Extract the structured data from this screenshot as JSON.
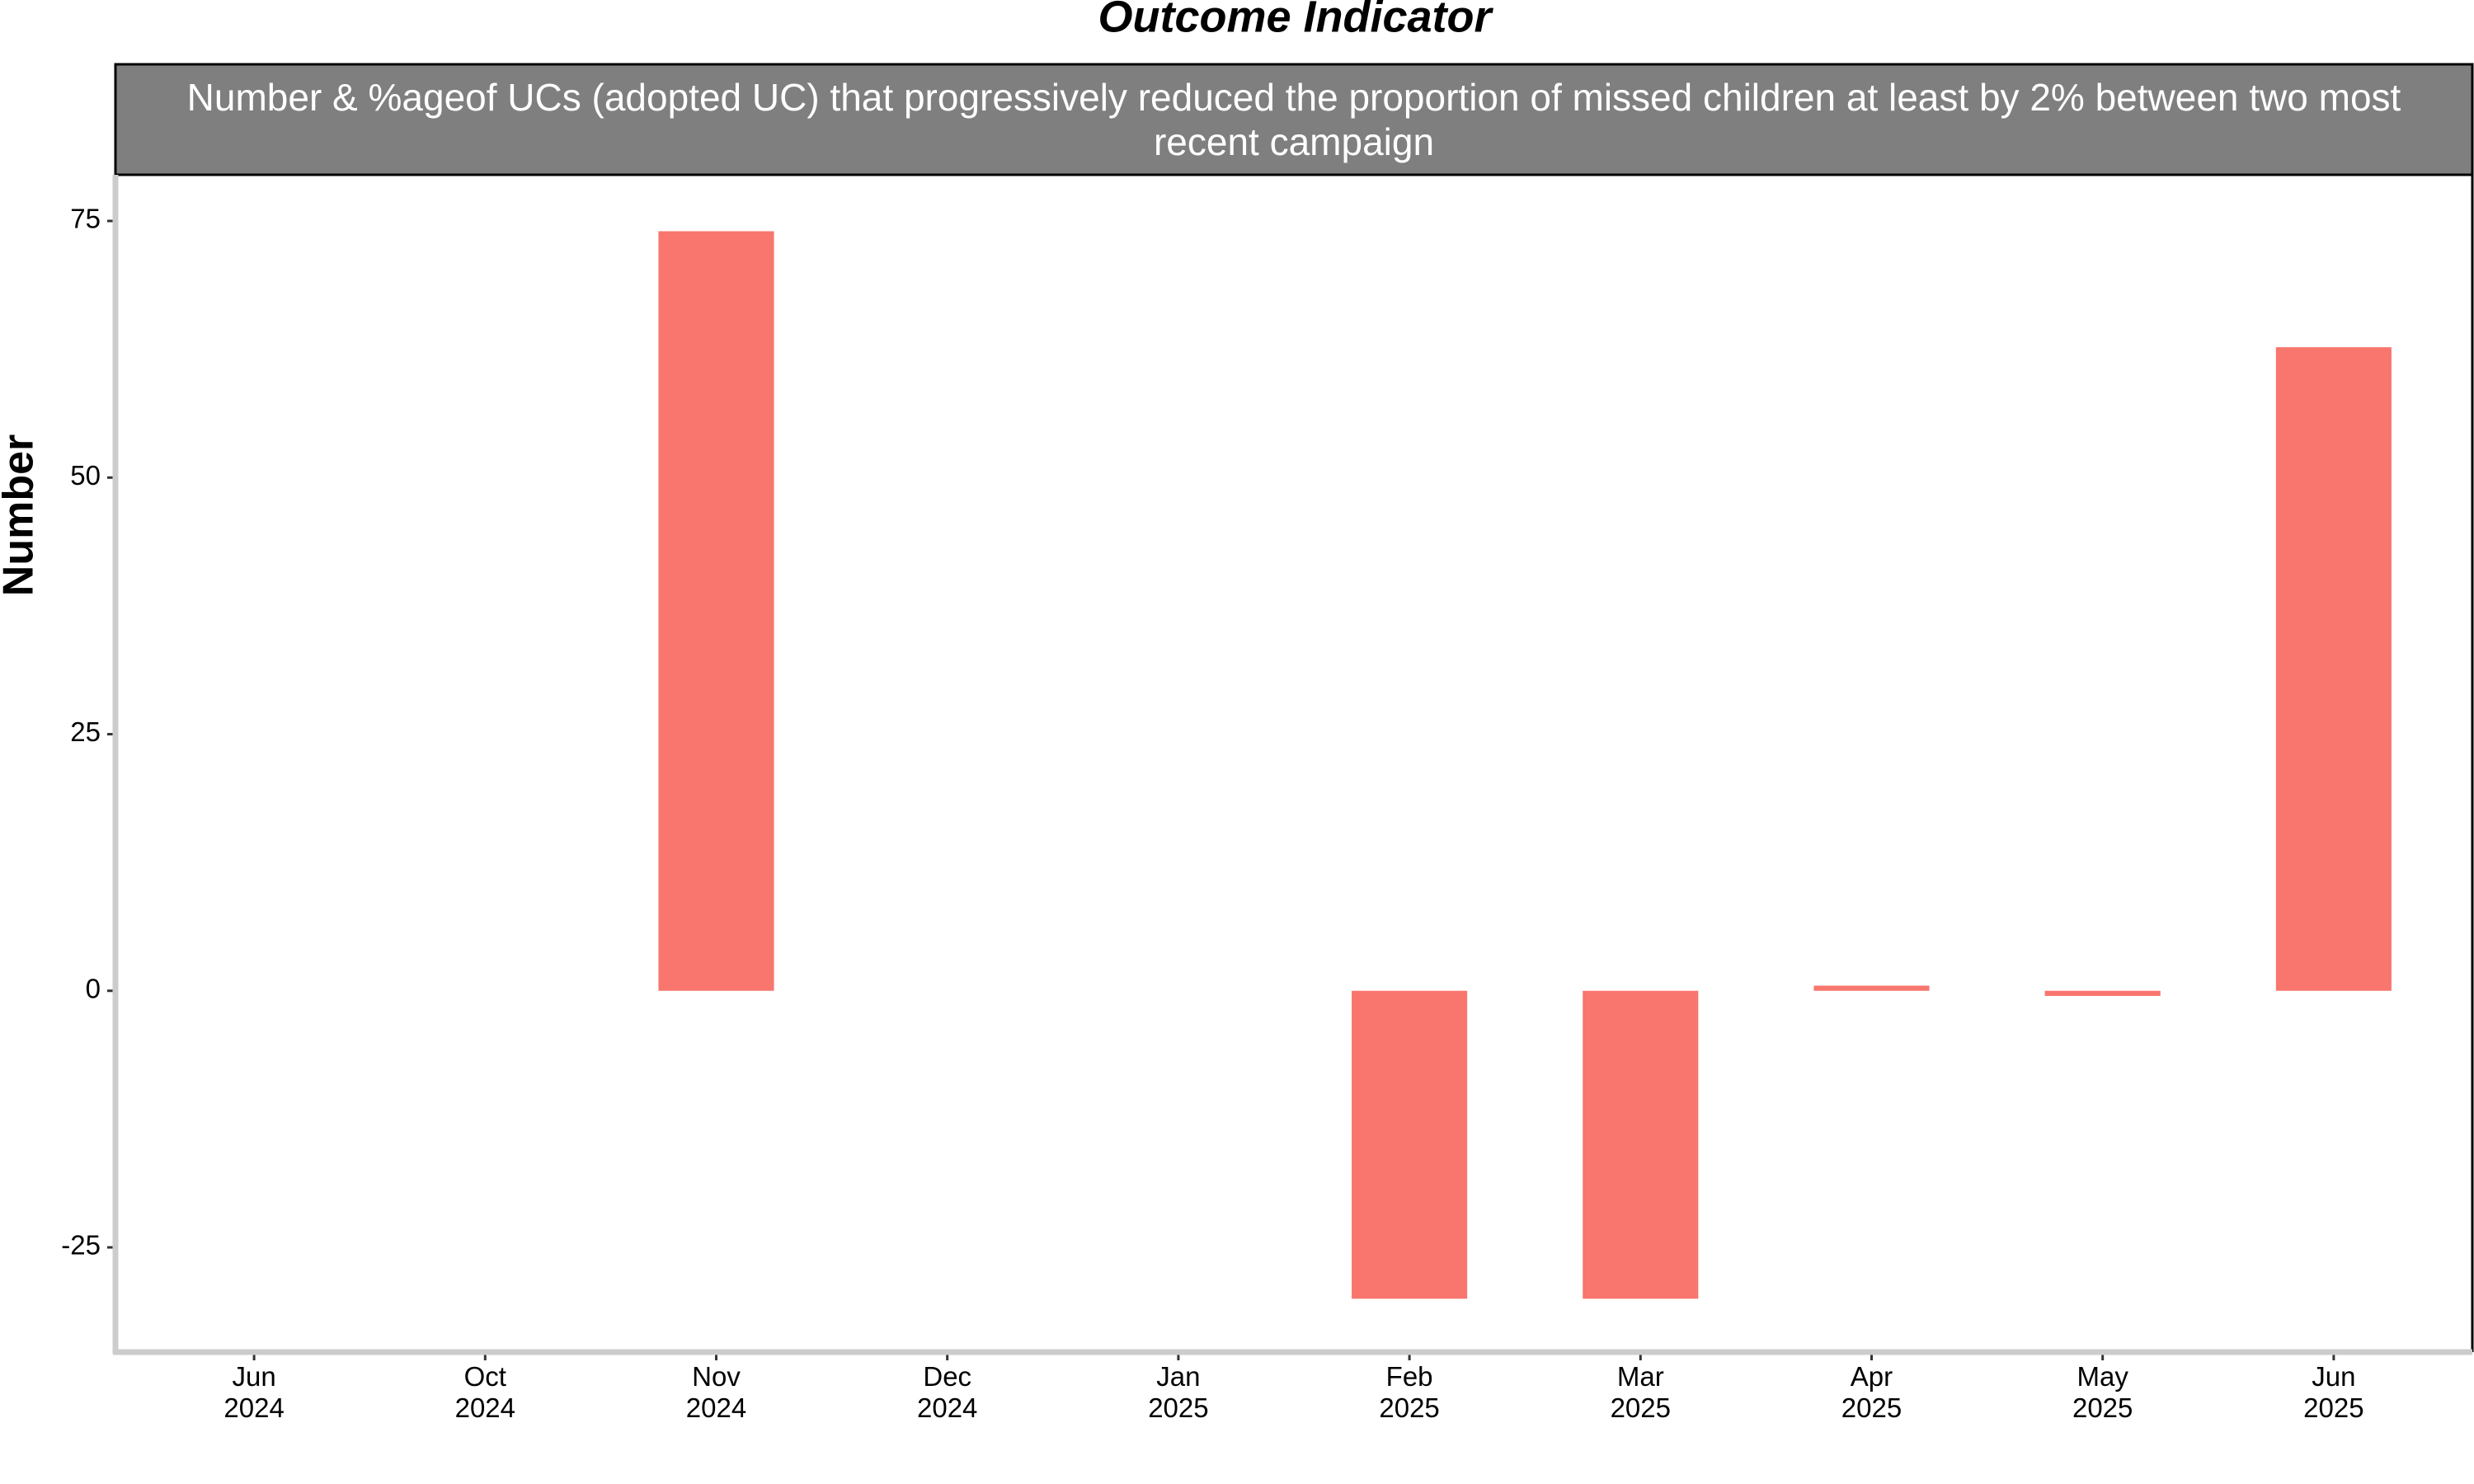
{
  "chart_data": {
    "type": "bar",
    "title": "Outcome Indicator",
    "subtitle": "Number & %ageof UCs (adopted UC) that progressively reduced the proportion of missed children at least by 2% between two most recent campaign",
    "y_label": "Number",
    "categories": [
      "Jun 2024",
      "Oct 2024",
      "Nov 2024",
      "Dec 2024",
      "Jan 2025",
      "Feb 2025",
      "Mar 2025",
      "Apr 2025",
      "May 2025",
      "Jun 2025"
    ],
    "values": [
      null,
      null,
      74,
      null,
      null,
      -30,
      -30,
      0.5,
      -0.5,
      62.7
    ],
    "color": "#f8766d",
    "ylim": [
      -35.2,
      79.5
    ],
    "yticks": [
      -25,
      0,
      25,
      50,
      75
    ]
  }
}
